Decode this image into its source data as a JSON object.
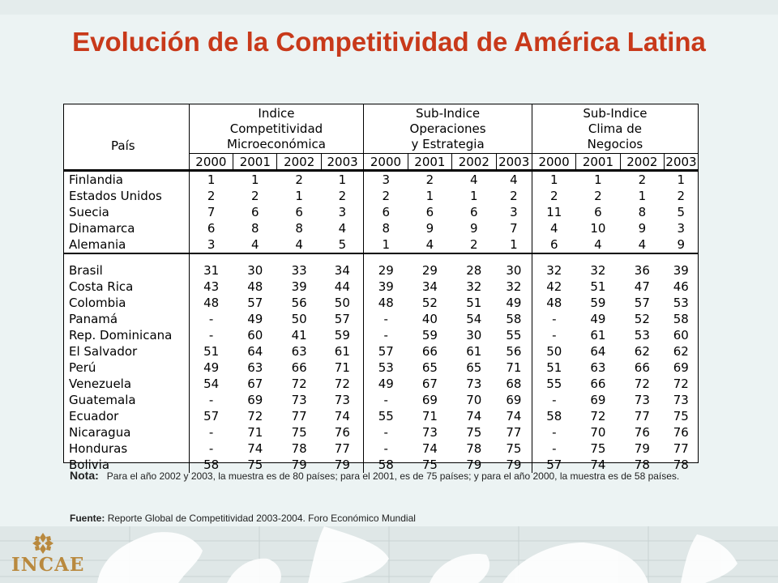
{
  "slide": {
    "title": "Evolución de la Competitividad de América Latina"
  },
  "table": {
    "country_header": "País",
    "groups": [
      {
        "label_lines": [
          "Indice",
          "Competitividad",
          "Microeconómica"
        ]
      },
      {
        "label_lines": [
          "Sub-Indice",
          "Operaciones",
          "y Estrategia"
        ]
      },
      {
        "label_lines": [
          "Sub-Indice",
          "Clima de",
          "Negocios"
        ]
      }
    ],
    "years": [
      "2000",
      "2001",
      "2002",
      "2003"
    ],
    "blocks": [
      [
        {
          "country": "Finlandia",
          "values": [
            "1",
            "1",
            "2",
            "1",
            "3",
            "2",
            "4",
            "4",
            "1",
            "1",
            "2",
            "1"
          ]
        },
        {
          "country": "Estados Unidos",
          "values": [
            "2",
            "2",
            "1",
            "2",
            "2",
            "1",
            "1",
            "2",
            "2",
            "2",
            "1",
            "2"
          ]
        },
        {
          "country": "Suecia",
          "values": [
            "7",
            "6",
            "6",
            "3",
            "6",
            "6",
            "6",
            "3",
            "11",
            "6",
            "8",
            "5"
          ]
        },
        {
          "country": "Dinamarca",
          "values": [
            "6",
            "8",
            "8",
            "4",
            "8",
            "9",
            "9",
            "7",
            "4",
            "10",
            "9",
            "3"
          ]
        },
        {
          "country": "Alemania",
          "values": [
            "3",
            "4",
            "4",
            "5",
            "1",
            "4",
            "2",
            "1",
            "6",
            "4",
            "4",
            "9"
          ]
        }
      ],
      [
        {
          "country": "Brasil",
          "values": [
            "31",
            "30",
            "33",
            "34",
            "29",
            "29",
            "28",
            "30",
            "32",
            "32",
            "36",
            "39"
          ]
        },
        {
          "country": "Costa Rica",
          "values": [
            "43",
            "48",
            "39",
            "44",
            "39",
            "34",
            "32",
            "32",
            "42",
            "51",
            "47",
            "46"
          ]
        },
        {
          "country": "Colombia",
          "values": [
            "48",
            "57",
            "56",
            "50",
            "48",
            "52",
            "51",
            "49",
            "48",
            "59",
            "57",
            "53"
          ]
        },
        {
          "country": "Panamá",
          "values": [
            "-",
            "49",
            "50",
            "57",
            "-",
            "40",
            "54",
            "58",
            "-",
            "49",
            "52",
            "58"
          ]
        },
        {
          "country": "Rep. Dominicana",
          "values": [
            "-",
            "60",
            "41",
            "59",
            "-",
            "59",
            "30",
            "55",
            "-",
            "61",
            "53",
            "60"
          ]
        },
        {
          "country": "El Salvador",
          "values": [
            "51",
            "64",
            "63",
            "61",
            "57",
            "66",
            "61",
            "56",
            "50",
            "64",
            "62",
            "62"
          ]
        },
        {
          "country": "Perú",
          "values": [
            "49",
            "63",
            "66",
            "71",
            "53",
            "65",
            "65",
            "71",
            "51",
            "63",
            "66",
            "69"
          ]
        },
        {
          "country": "Venezuela",
          "values": [
            "54",
            "67",
            "72",
            "72",
            "49",
            "67",
            "73",
            "68",
            "55",
            "66",
            "72",
            "72"
          ]
        },
        {
          "country": "Guatemala",
          "values": [
            "-",
            "69",
            "73",
            "73",
            "-",
            "69",
            "70",
            "69",
            "-",
            "69",
            "73",
            "73"
          ]
        },
        {
          "country": "Ecuador",
          "values": [
            "57",
            "72",
            "77",
            "74",
            "55",
            "71",
            "74",
            "74",
            "58",
            "72",
            "77",
            "75"
          ]
        },
        {
          "country": "Nicaragua",
          "values": [
            "-",
            "71",
            "75",
            "76",
            "-",
            "73",
            "75",
            "77",
            "-",
            "70",
            "76",
            "76"
          ]
        },
        {
          "country": "Honduras",
          "values": [
            "-",
            "74",
            "78",
            "77",
            "-",
            "74",
            "78",
            "75",
            "-",
            "75",
            "79",
            "77"
          ]
        },
        {
          "country": "Bolivia",
          "values": [
            "58",
            "75",
            "79",
            "79",
            "58",
            "75",
            "79",
            "79",
            "57",
            "74",
            "78",
            "78"
          ]
        }
      ]
    ]
  },
  "note": {
    "label": "Nota:",
    "text": "Para el año 2002 y 2003, la muestra es de 80 países; para el 2001, es de 75 países; y para el año 2000, la muestra es de 58 países."
  },
  "source": {
    "label": "Fuente:",
    "text": "Reporte Global de Competitividad 2003-2004. Foro Económico Mundial"
  },
  "logo": {
    "text": "INCAE",
    "icon": "incae-diamond-logo-icon",
    "color": "#b9893e"
  },
  "colors": {
    "title": "#c8391a",
    "background": "#ecf3f3"
  }
}
